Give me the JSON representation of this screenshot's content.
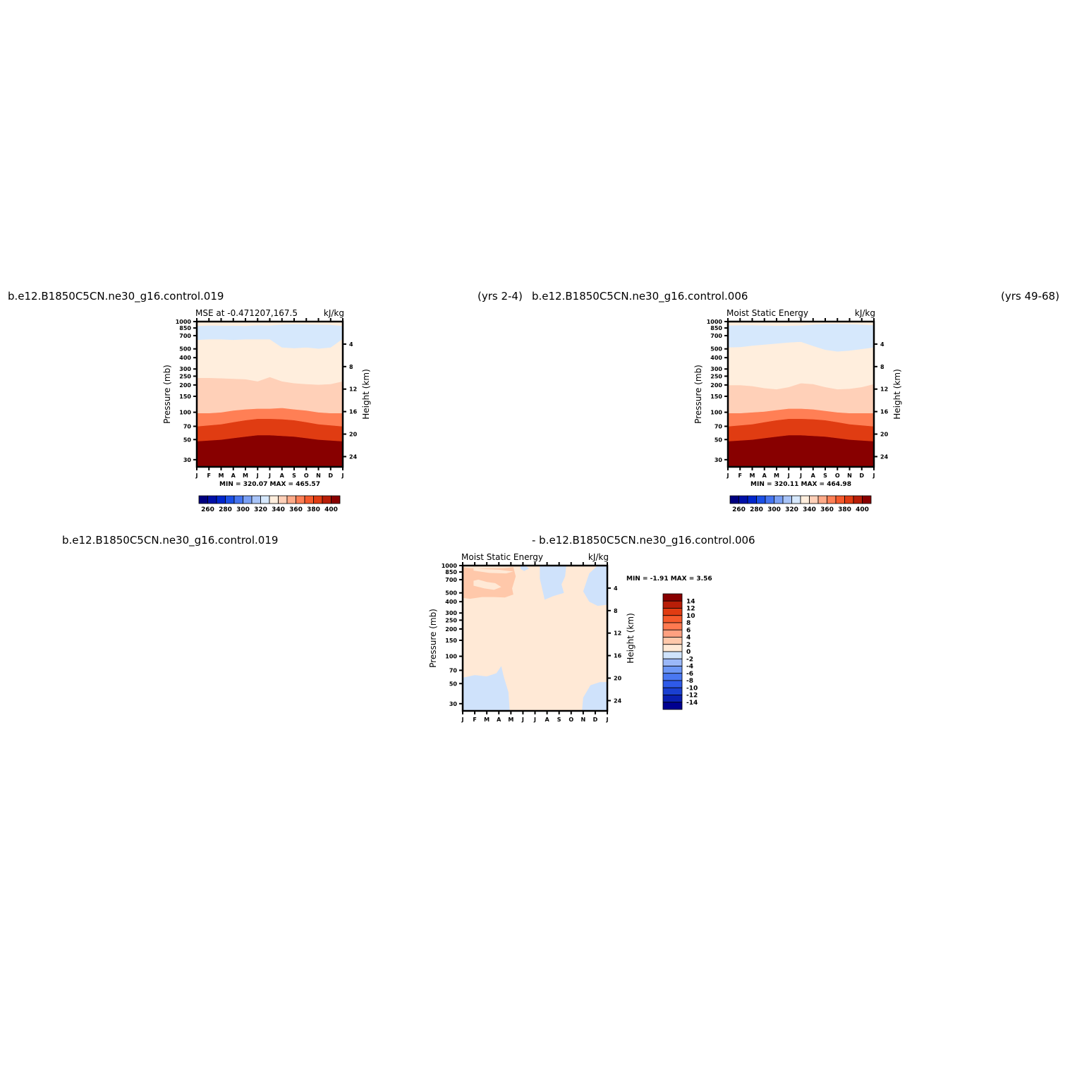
{
  "titles": {
    "top_left_case": "b.e12.B1850C5CN.ne30_g16.control.019",
    "top_left_years": "(yrs 2-4)",
    "top_right_case": "b.e12.B1850C5CN.ne30_g16.control.006",
    "top_right_years": "(yrs 49-68)",
    "bottom_case_a": "b.e12.B1850C5CN.ne30_g16.control.019",
    "bottom_case_b": "- b.e12.B1850C5CN.ne30_g16.control.006"
  },
  "colors": {
    "abs_scale": [
      "#00007f",
      "#0010a8",
      "#0026cc",
      "#1b4fe6",
      "#4575f0",
      "#7aa0f5",
      "#a8c4f8",
      "#d6e8fc",
      "#ffeedd",
      "#ffd0b8",
      "#ffaa88",
      "#ff7f55",
      "#f55a2c",
      "#e03c12",
      "#b81e08",
      "#880000"
    ],
    "diff_scale": [
      "#000090",
      "#0a1fb0",
      "#1a3fd0",
      "#2e5ae8",
      "#4a78f2",
      "#6d97f6",
      "#9bb8f9",
      "#cfe2fb",
      "#ffe9d6",
      "#ffc8aa",
      "#ffa080",
      "#ff7a50",
      "#f55a2c",
      "#e03c12",
      "#b81e08",
      "#880000"
    ]
  },
  "chart_data": [
    {
      "type": "heatmap",
      "title": "MSE at -0.471207,167.5",
      "units": "kJ/kg",
      "xlabel": "",
      "ylabel": "Pressure (mb)",
      "y2label": "Height (km)",
      "x_ticks": [
        "J",
        "F",
        "M",
        "A",
        "M",
        "J",
        "J",
        "A",
        "S",
        "O",
        "N",
        "D",
        "J"
      ],
      "y_ticks": [
        "30",
        "50",
        "70",
        "100",
        "150",
        "200",
        "250",
        "300",
        "400",
        "500",
        "700",
        "850",
        "1000"
      ],
      "y2_ticks": [
        "24",
        "20",
        "16",
        "12",
        "8",
        "4"
      ],
      "y_scale": "log",
      "ylim": [
        1000,
        25
      ],
      "min": "320.07",
      "max": "465.57",
      "minmax_label": "MIN = 320.07 MAX = 465.57",
      "colorbar_labels": [
        "260",
        "280",
        "300",
        "320",
        "340",
        "360",
        "380",
        "400"
      ],
      "contour_levels": [
        250,
        260,
        270,
        280,
        290,
        300,
        310,
        320,
        330,
        340,
        350,
        360,
        370,
        380,
        390,
        400
      ],
      "bands": [
        {
          "color_index": 15,
          "p_top": [
            25,
            25,
            25,
            25,
            25,
            25,
            25,
            25,
            25,
            25,
            25,
            25,
            25
          ],
          "p_bot": [
            48,
            49,
            50,
            52,
            54,
            56,
            56,
            55,
            54,
            52,
            50,
            49,
            48
          ]
        },
        {
          "color_index": 13,
          "p_top": [
            48,
            49,
            50,
            52,
            54,
            56,
            56,
            55,
            54,
            52,
            50,
            49,
            48
          ],
          "p_bot": [
            70,
            72,
            74,
            78,
            82,
            85,
            85,
            84,
            82,
            78,
            74,
            72,
            70
          ]
        },
        {
          "color_index": 11,
          "p_top": [
            70,
            72,
            74,
            78,
            82,
            85,
            85,
            84,
            82,
            78,
            74,
            72,
            70
          ],
          "p_bot": [
            98,
            98,
            100,
            105,
            108,
            110,
            110,
            112,
            108,
            105,
            100,
            98,
            98
          ]
        },
        {
          "color_index": 9,
          "p_top": [
            98,
            98,
            100,
            105,
            108,
            110,
            110,
            112,
            108,
            105,
            100,
            98,
            98
          ],
          "p_bot": [
            240,
            240,
            238,
            235,
            232,
            220,
            245,
            220,
            210,
            205,
            202,
            205,
            220
          ]
        },
        {
          "color_index": 8,
          "p_top": [
            240,
            240,
            238,
            235,
            232,
            220,
            245,
            220,
            210,
            205,
            202,
            205,
            220
          ],
          "p_bot": [
            630,
            640,
            640,
            630,
            640,
            640,
            640,
            520,
            510,
            520,
            505,
            520,
            650
          ]
        },
        {
          "color_index": 7,
          "p_top": [
            630,
            640,
            640,
            630,
            640,
            640,
            640,
            520,
            510,
            520,
            505,
            520,
            650
          ],
          "p_bot": [
            900,
            910,
            905,
            905,
            900,
            915,
            910,
            930,
            940,
            935,
            930,
            925,
            900
          ]
        },
        {
          "color_index": 8,
          "p_top": [
            900,
            910,
            905,
            905,
            900,
            915,
            910,
            930,
            940,
            935,
            930,
            925,
            900
          ],
          "p_bot": [
            1000,
            1000,
            1000,
            1000,
            1000,
            1000,
            1000,
            1000,
            1000,
            1000,
            1000,
            1000,
            1000
          ]
        }
      ]
    },
    {
      "type": "heatmap",
      "title": "Moist Static Energy",
      "units": "kJ/kg",
      "xlabel": "",
      "ylabel": "Pressure (mb)",
      "y2label": "Height (km)",
      "x_ticks": [
        "J",
        "F",
        "M",
        "A",
        "M",
        "J",
        "J",
        "A",
        "S",
        "O",
        "N",
        "D",
        "J"
      ],
      "y_ticks": [
        "30",
        "50",
        "70",
        "100",
        "150",
        "200",
        "250",
        "300",
        "400",
        "500",
        "700",
        "850",
        "1000"
      ],
      "y2_ticks": [
        "24",
        "20",
        "16",
        "12",
        "8",
        "4"
      ],
      "y_scale": "log",
      "ylim": [
        1000,
        25
      ],
      "min": "320.11",
      "max": "464.98",
      "minmax_label": "MIN = 320.11 MAX = 464.98",
      "colorbar_labels": [
        "260",
        "280",
        "300",
        "320",
        "340",
        "360",
        "380",
        "400"
      ],
      "contour_levels": [
        250,
        260,
        270,
        280,
        290,
        300,
        310,
        320,
        330,
        340,
        350,
        360,
        370,
        380,
        390,
        400
      ],
      "bands": [
        {
          "color_index": 15,
          "p_top": [
            25,
            25,
            25,
            25,
            25,
            25,
            25,
            25,
            25,
            25,
            25,
            25,
            25
          ],
          "p_bot": [
            48,
            49,
            50,
            52,
            54,
            56,
            56,
            55,
            54,
            52,
            50,
            49,
            48
          ]
        },
        {
          "color_index": 13,
          "p_top": [
            48,
            49,
            50,
            52,
            54,
            56,
            56,
            55,
            54,
            52,
            50,
            49,
            48
          ],
          "p_bot": [
            70,
            72,
            74,
            78,
            82,
            85,
            85,
            84,
            82,
            78,
            74,
            72,
            70
          ]
        },
        {
          "color_index": 11,
          "p_top": [
            70,
            72,
            74,
            78,
            82,
            85,
            85,
            84,
            82,
            78,
            74,
            72,
            70
          ],
          "p_bot": [
            98,
            98,
            100,
            102,
            106,
            110,
            110,
            108,
            104,
            100,
            98,
            98,
            98
          ]
        },
        {
          "color_index": 9,
          "p_top": [
            98,
            98,
            100,
            102,
            106,
            110,
            110,
            108,
            104,
            100,
            98,
            98,
            98
          ],
          "p_bot": [
            200,
            200,
            195,
            185,
            180,
            190,
            210,
            205,
            190,
            180,
            182,
            190,
            205
          ]
        },
        {
          "color_index": 8,
          "p_top": [
            200,
            200,
            195,
            185,
            180,
            190,
            210,
            205,
            190,
            180,
            182,
            190,
            205
          ],
          "p_bot": [
            520,
            525,
            545,
            560,
            575,
            590,
            600,
            540,
            490,
            470,
            480,
            500,
            520
          ]
        },
        {
          "color_index": 7,
          "p_top": [
            520,
            525,
            545,
            560,
            575,
            590,
            600,
            540,
            490,
            470,
            480,
            500,
            520
          ],
          "p_bot": [
            910,
            915,
            915,
            910,
            905,
            905,
            910,
            930,
            945,
            945,
            940,
            930,
            915
          ]
        },
        {
          "color_index": 8,
          "p_top": [
            910,
            915,
            915,
            910,
            905,
            905,
            910,
            930,
            945,
            945,
            940,
            930,
            915
          ],
          "p_bot": [
            1000,
            1000,
            1000,
            1000,
            1000,
            1000,
            1000,
            1000,
            1000,
            1000,
            1000,
            1000,
            1000
          ]
        }
      ]
    },
    {
      "type": "heatmap",
      "title": "Moist Static Energy",
      "units": "kJ/kg",
      "xlabel": "",
      "ylabel": "Pressure (mb)",
      "y2label": "Height (km)",
      "x_ticks": [
        "J",
        "F",
        "M",
        "A",
        "M",
        "J",
        "J",
        "A",
        "S",
        "O",
        "N",
        "D",
        "J"
      ],
      "y_ticks": [
        "30",
        "50",
        "70",
        "100",
        "150",
        "200",
        "250",
        "300",
        "400",
        "500",
        "700",
        "850",
        "1000"
      ],
      "y2_ticks": [
        "24",
        "20",
        "16",
        "12",
        "8",
        "4"
      ],
      "y_scale": "log",
      "ylim": [
        1000,
        25
      ],
      "min": "-1.91",
      "max": "3.56",
      "minmax_label": "MIN = -1.91 MAX = 3.56",
      "colorbar_labels": [
        "14",
        "12",
        "10",
        "8",
        "6",
        "4",
        "2",
        "0",
        "-2",
        "-4",
        "-6",
        "-8",
        "-10",
        "-12",
        "-14"
      ],
      "contour_levels": [
        -14,
        -12,
        -10,
        -8,
        -6,
        -4,
        -2,
        0,
        2,
        4,
        6,
        8,
        10,
        12,
        14
      ],
      "background_color_index": 8,
      "regions": [
        {
          "color_index": 7,
          "points": [
            [
              0,
              25
            ],
            [
              0,
              58
            ],
            [
              1,
              62
            ],
            [
              2,
              60
            ],
            [
              2.8,
              65
            ],
            [
              3.2,
              78
            ],
            [
              3.4,
              60
            ],
            [
              3.8,
              40
            ],
            [
              3.9,
              25
            ]
          ]
        },
        {
          "color_index": 7,
          "points": [
            [
              9.9,
              25
            ],
            [
              10,
              35
            ],
            [
              10.6,
              48
            ],
            [
              11.4,
              52
            ],
            [
              12,
              52
            ],
            [
              12,
              25
            ]
          ]
        },
        {
          "color_index": 9,
          "points": [
            [
              0,
              440
            ],
            [
              0.6,
              430
            ],
            [
              1.6,
              450
            ],
            [
              2.6,
              450
            ],
            [
              3.5,
              445
            ],
            [
              4.2,
              480
            ],
            [
              4.1,
              560
            ],
            [
              4.4,
              760
            ],
            [
              4.2,
              960
            ],
            [
              3.5,
              940
            ],
            [
              2.5,
              935
            ],
            [
              1.5,
              930
            ],
            [
              0.6,
              940
            ],
            [
              0,
              960
            ]
          ]
        },
        {
          "color_index": 8,
          "points": [
            [
              0.9,
              600
            ],
            [
              1.8,
              560
            ],
            [
              2.6,
              540
            ],
            [
              3.2,
              580
            ],
            [
              2.7,
              640
            ],
            [
              2,
              660
            ],
            [
              1.3,
              700
            ],
            [
              0.9,
              680
            ]
          ]
        },
        {
          "color_index": 8,
          "points": [
            [
              0.9,
              880
            ],
            [
              2.2,
              830
            ],
            [
              3.6,
              820
            ],
            [
              4.2,
              860
            ],
            [
              3,
              900
            ],
            [
              1.6,
              920
            ],
            [
              0.9,
              940
            ]
          ]
        },
        {
          "color_index": 7,
          "points": [
            [
              6.4,
              720
            ],
            [
              6.8,
              420
            ],
            [
              7.5,
              460
            ],
            [
              8.4,
              500
            ],
            [
              8.2,
              620
            ],
            [
              8.5,
              760
            ],
            [
              8.6,
              1000
            ],
            [
              6.4,
              1000
            ]
          ]
        },
        {
          "color_index": 7,
          "points": [
            [
              4.8,
              920
            ],
            [
              5.1,
              870
            ],
            [
              5.5,
              930
            ],
            [
              5.2,
              1000
            ],
            [
              4.8,
              980
            ]
          ]
        },
        {
          "color_index": 7,
          "points": [
            [
              10,
              520
            ],
            [
              10.5,
              400
            ],
            [
              11.2,
              360
            ],
            [
              12,
              370
            ],
            [
              12,
              1000
            ],
            [
              11.2,
              1000
            ],
            [
              10.5,
              820
            ]
          ]
        }
      ]
    }
  ]
}
